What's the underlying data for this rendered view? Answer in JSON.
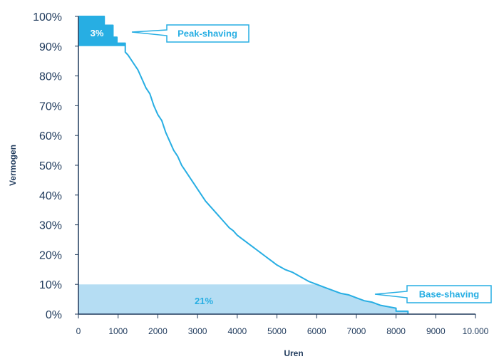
{
  "chart_data": {
    "type": "area",
    "xlabel": "Uren",
    "ylabel": "Vermogen",
    "xlim": [
      0,
      10000
    ],
    "ylim": [
      0,
      100
    ],
    "x_ticks": [
      "0",
      "1000",
      "2000",
      "3000",
      "4000",
      "5000",
      "6000",
      "7000",
      "8000",
      "9000",
      "10.000"
    ],
    "y_ticks": [
      "0%",
      "10%",
      "20%",
      "30%",
      "40%",
      "50%",
      "60%",
      "70%",
      "80%",
      "90%",
      "100%"
    ],
    "grid": false,
    "series": [
      {
        "x": [
          0,
          650,
          650,
          870,
          870,
          970,
          970,
          1000,
          1000,
          1180,
          1180,
          1250,
          1400,
          1500,
          1600,
          1700,
          1800,
          1900,
          2000,
          2100,
          2200,
          2300,
          2400,
          2500,
          2600,
          2700,
          2800,
          2900,
          3000,
          3100,
          3200,
          3300,
          3400,
          3500,
          3600,
          3700,
          3800,
          3900,
          4000,
          4100,
          4200,
          4300,
          4400,
          4500,
          4600,
          4700,
          4800,
          4900,
          5000,
          5200,
          5400,
          5600,
          5800,
          6000,
          6200,
          6400,
          6600,
          6800,
          7000,
          7200,
          7400,
          7600,
          7800,
          8000,
          8000,
          8300,
          8300
        ],
        "y": [
          100,
          100,
          97,
          97,
          93,
          93,
          91,
          91,
          91,
          91,
          88,
          87,
          84,
          82,
          79,
          76,
          74,
          70,
          67,
          65,
          61,
          58,
          55,
          53,
          50,
          48,
          46,
          44,
          42,
          40,
          38,
          36.5,
          35,
          33.5,
          32,
          30.5,
          29,
          28,
          26.5,
          25.5,
          24.5,
          23.5,
          22.5,
          21.5,
          20.5,
          19.5,
          18.5,
          17.5,
          16.5,
          15,
          14,
          12.5,
          11,
          10,
          9,
          8,
          7,
          6.5,
          5.5,
          4.5,
          4,
          3,
          2.5,
          2,
          1,
          1,
          0
        ]
      }
    ],
    "regions": [
      {
        "label": "3%",
        "y_from": 90,
        "y_to": 100,
        "note": "Peak-shaving"
      },
      {
        "label": "21%",
        "y_from": 0,
        "y_to": 10,
        "note": "Base-shaving"
      }
    ],
    "annotations": [
      "Peak-shaving",
      "Base-shaving"
    ],
    "colors": {
      "line": "#27aee3",
      "peak_fill": "#27aee3",
      "base_fill": "#b5ddf3",
      "axis": "#1f3a5c",
      "callout_text": "#27aee3"
    }
  }
}
